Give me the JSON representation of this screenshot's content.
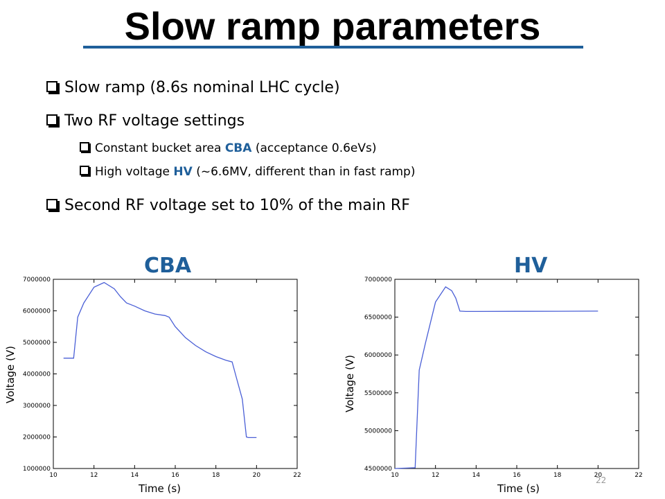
{
  "slide": {
    "title": "Slow ramp parameters",
    "page_number": "22",
    "bullets": {
      "b1": "Slow ramp (8.6s nominal LHC cycle)",
      "b2": "Two RF voltage settings",
      "b2a_pre": "Constant bucket area ",
      "b2a_hl": "CBA",
      "b2a_post": " (acceptance 0.6eVs)",
      "b2b_pre": "High voltage ",
      "b2b_hl": "HV",
      "b2b_post": " (~6.6MV, different than in fast ramp)",
      "b3": "Second RF voltage set to 10% of the main RF"
    },
    "accent_color": "#1f5f9a"
  },
  "chart_data": [
    {
      "type": "line",
      "title": "CBA",
      "xlabel": "Time (s)",
      "ylabel": "Voltage (V)",
      "xlim": [
        10,
        22
      ],
      "ylim": [
        1000000,
        7000000
      ],
      "xticks": [
        10,
        12,
        14,
        16,
        18,
        20,
        22
      ],
      "yticks": [
        1000000,
        2000000,
        3000000,
        4000000,
        5000000,
        6000000,
        7000000
      ],
      "ytick_labels": [
        "1000000",
        "2000000",
        "3000000",
        "4000000",
        "5000000",
        "6000000",
        "7000000"
      ],
      "grid": false,
      "line_color": "#4a5fd6",
      "series": [
        {
          "x": [
            10.5,
            11.0,
            11.2,
            11.5,
            12.0,
            12.5,
            13.0,
            13.3,
            13.6,
            14.0,
            14.5,
            15.0,
            15.5,
            15.7,
            16.0,
            16.5,
            17.0,
            17.5,
            18.0,
            18.5,
            18.8,
            19.0,
            19.3,
            19.5,
            19.6,
            20.0
          ],
          "y": [
            4500000,
            4500000,
            5800000,
            6250000,
            6750000,
            6900000,
            6700000,
            6450000,
            6250000,
            6150000,
            6000000,
            5900000,
            5850000,
            5800000,
            5500000,
            5150000,
            4900000,
            4700000,
            4550000,
            4430000,
            4380000,
            3900000,
            3200000,
            2000000,
            1980000,
            1980000
          ]
        }
      ]
    },
    {
      "type": "line",
      "title": "HV",
      "xlabel": "Time (s)",
      "ylabel": "Voltage (V)",
      "xlim": [
        10,
        22
      ],
      "ylim": [
        4500000,
        7000000
      ],
      "xticks": [
        10,
        12,
        14,
        16,
        18,
        20,
        22
      ],
      "yticks": [
        4500000,
        5000000,
        5500000,
        6000000,
        6500000,
        7000000
      ],
      "ytick_labels": [
        "4500000",
        "5000000",
        "5500000",
        "6000000",
        "6500000",
        "7000000"
      ],
      "grid": false,
      "line_color": "#4a5fd6",
      "series": [
        {
          "x": [
            10.0,
            11.0,
            11.2,
            11.5,
            12.0,
            12.5,
            12.8,
            13.0,
            13.2,
            13.5,
            14.0,
            16.0,
            18.0,
            20.0
          ],
          "y": [
            4500000,
            4510000,
            5800000,
            6150000,
            6700000,
            6900000,
            6850000,
            6750000,
            6580000,
            6575000,
            6575000,
            6577000,
            6578000,
            6580000
          ]
        }
      ]
    }
  ]
}
